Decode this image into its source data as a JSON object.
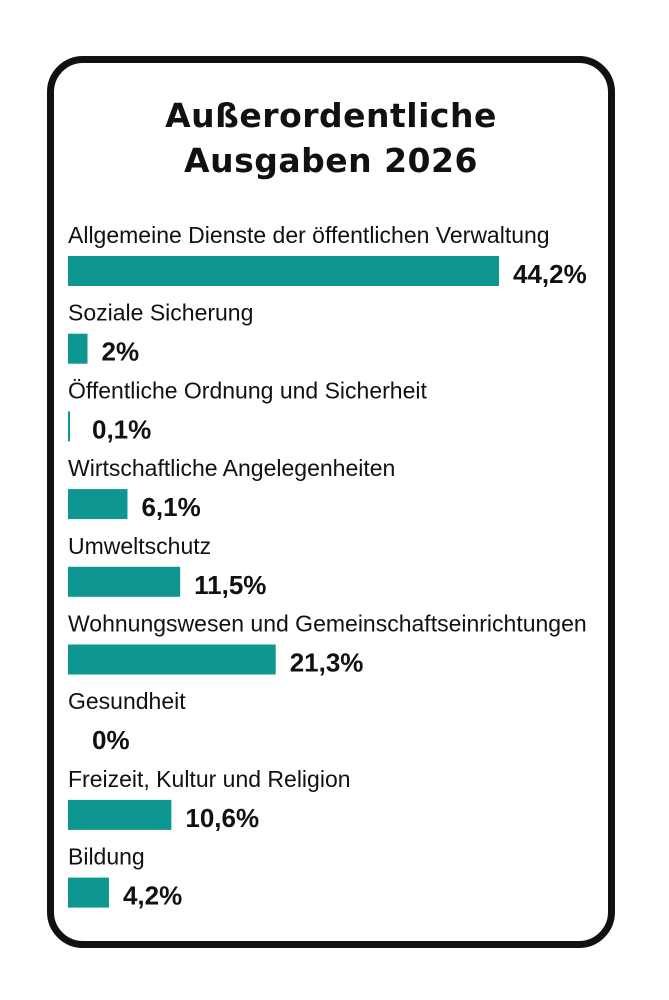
{
  "chart_data": {
    "type": "bar",
    "orientation": "horizontal",
    "title": [
      "Außerordentliche",
      "Ausgaben 2026"
    ],
    "categories": [
      "Allgemeine Dienste der öffentlichen Verwaltung",
      "Soziale Sicherung",
      "Öffentliche Ordnung und Sicherheit",
      "Wirtschaftliche Angelegenheiten",
      "Umweltschutz",
      "Wohnungswesen und Gemeinschaftseinrichtungen",
      "Gesundheit",
      "Freizeit, Kultur und Religion",
      "Bildung"
    ],
    "values": [
      44.2,
      2,
      0.1,
      6.1,
      11.5,
      21.3,
      0,
      10.6,
      4.2
    ],
    "value_labels": [
      "44,2%",
      "2%",
      "0,1%",
      "6,1%",
      "11,5%",
      "21,3%",
      "0%",
      "10,6%",
      "4,2%"
    ],
    "unit": "%",
    "xlim": [
      0,
      44.2
    ],
    "grid": false,
    "bar_color": "#0e9690",
    "border_color": "#111111"
  }
}
